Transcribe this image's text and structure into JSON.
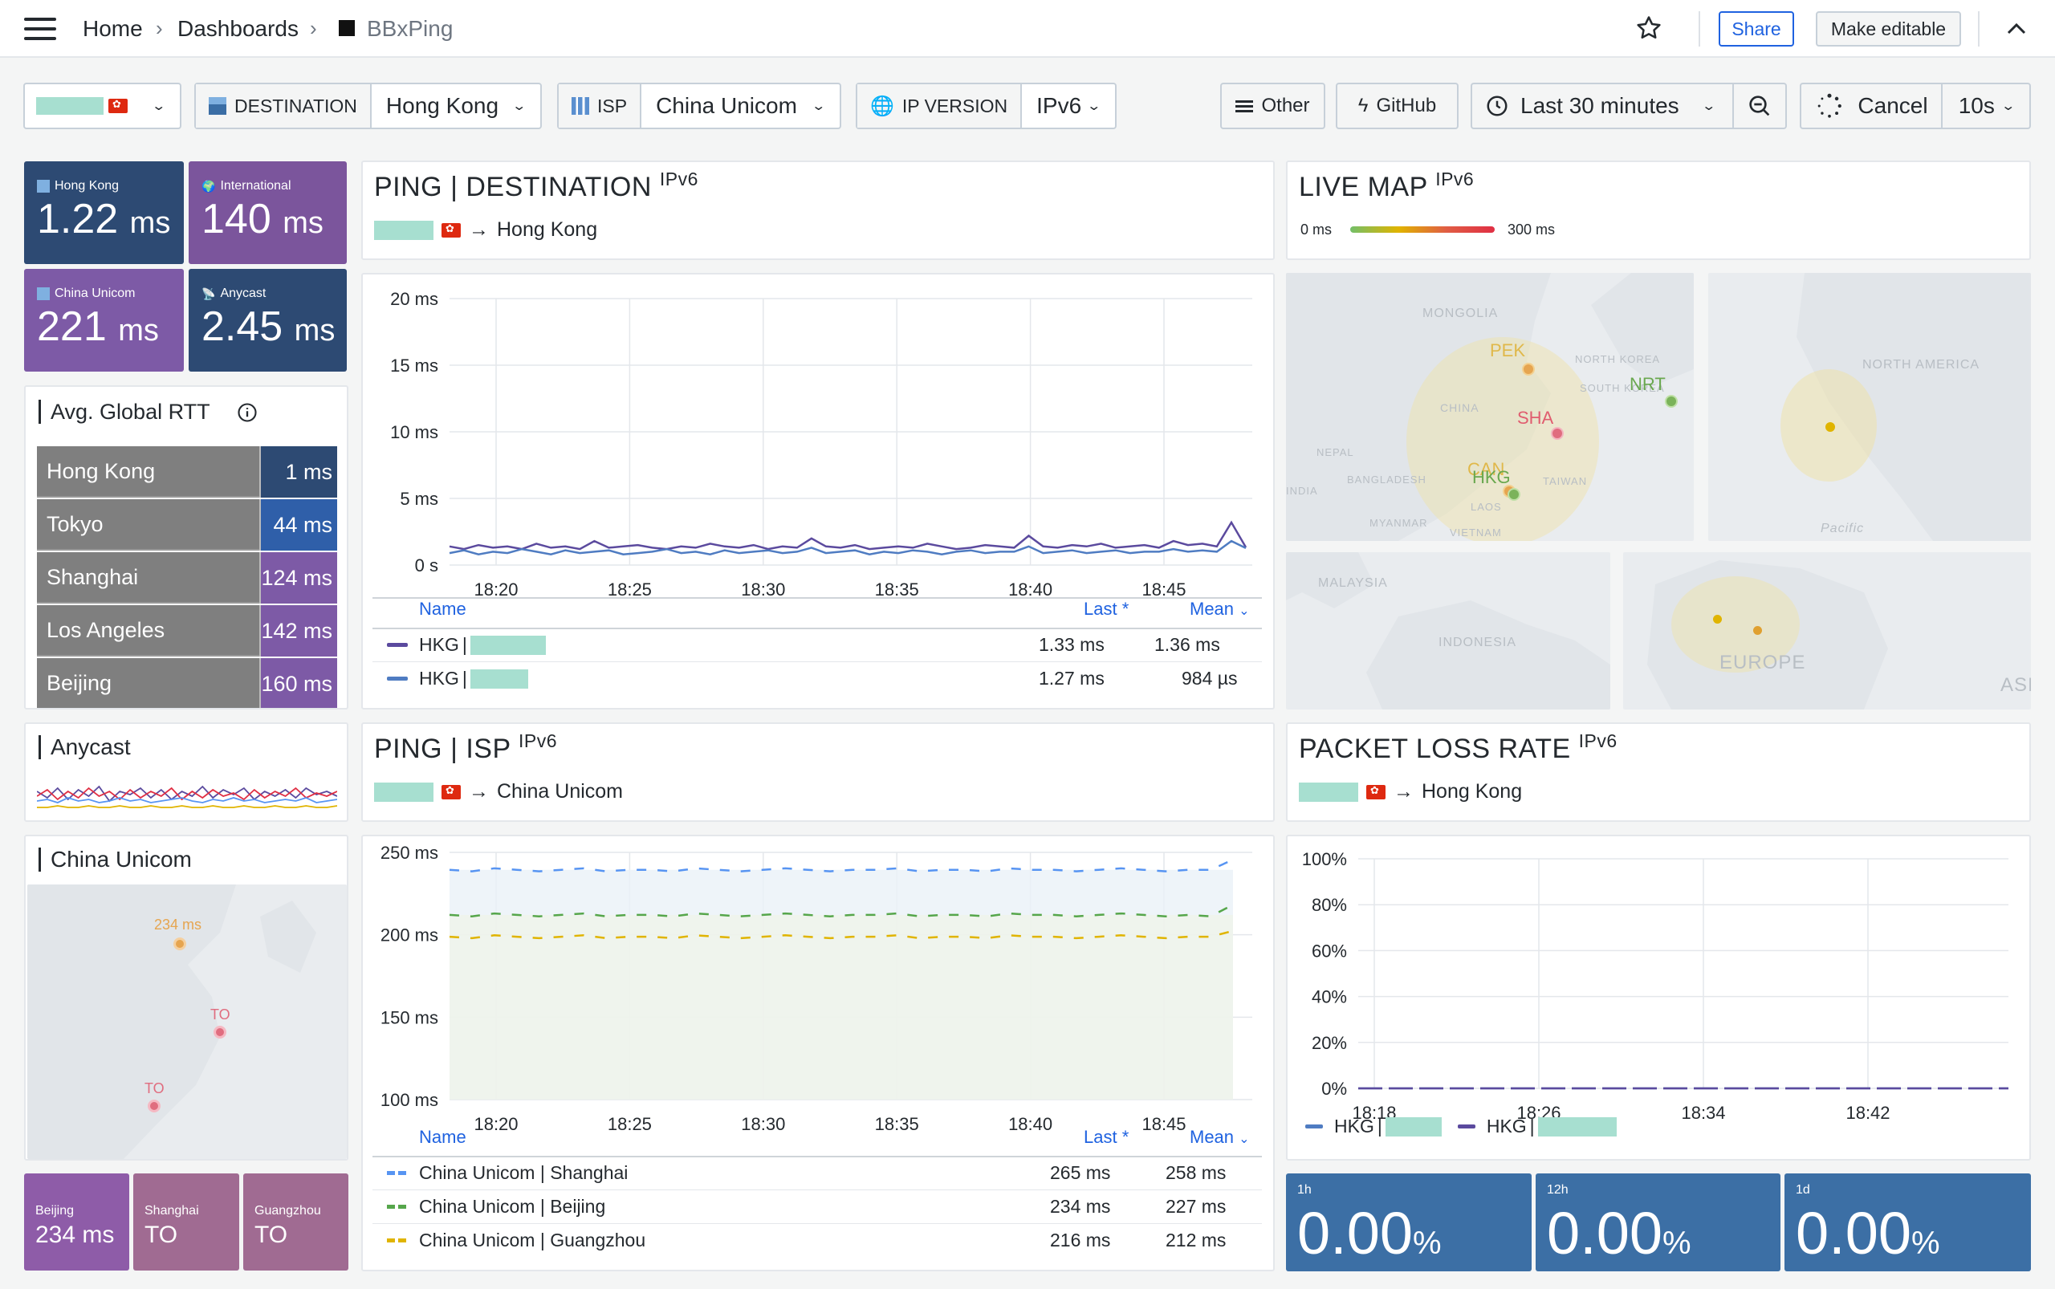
{
  "breadcrumb": {
    "home": "Home",
    "dashboards": "Dashboards",
    "current": "BBxPing"
  },
  "header": {
    "share": "Share",
    "make_editable": "Make editable"
  },
  "variables": {
    "destination": {
      "label": "DESTINATION",
      "value": "Hong Kong"
    },
    "isp": {
      "label": "ISP",
      "value": "China Unicom"
    },
    "ip_version": {
      "label": "IP VERSION",
      "value": "IPv6"
    }
  },
  "toolbar": {
    "other": "Other",
    "github": "GitHub",
    "time_range": "Last 30 minutes",
    "cancel": "Cancel",
    "refresh": "10s"
  },
  "stats": [
    {
      "label": "Hong Kong",
      "value": "1.22",
      "unit": "ms",
      "color": "#2d4a73"
    },
    {
      "label": "International",
      "value": "140",
      "unit": "ms",
      "color": "#7b559c"
    },
    {
      "label": "China Unicom",
      "value": "221",
      "unit": "ms",
      "color": "#7d5aa6"
    },
    {
      "label": "Anycast",
      "value": "2.45",
      "unit": "ms",
      "color": "#2d4a73"
    }
  ],
  "avg_rtt": {
    "title": "Avg. Global RTT",
    "rows": [
      {
        "city": "Hong Kong",
        "value": "1 ms",
        "color": "#2d4a73"
      },
      {
        "city": "Tokyo",
        "value": "44 ms",
        "color": "#2f5fa9"
      },
      {
        "city": "Shanghai",
        "value": "124 ms",
        "color": "#7d5aa6"
      },
      {
        "city": "Los Angeles",
        "value": "142 ms",
        "color": "#7d5aa6"
      },
      {
        "city": "Beijing",
        "value": "160 ms",
        "color": "#7d5aa6"
      }
    ]
  },
  "anycast_panel": {
    "title": "Anycast"
  },
  "unicom_panel": {
    "title": "China Unicom",
    "map_labels": {
      "beijing": "234 ms",
      "shanghai": "TO",
      "guangzhou": "TO"
    },
    "tiles": [
      {
        "label": "Beijing",
        "value": "234 ms",
        "color": "#8e5ca8"
      },
      {
        "label": "Shanghai",
        "value": "TO",
        "color": "#a06b92"
      },
      {
        "label": "Guangzhou",
        "value": "TO",
        "color": "#a06b92"
      }
    ]
  },
  "ping_destination": {
    "title": "PING | DESTINATION",
    "badge": "IPv6",
    "arrow_target": "Hong Kong",
    "legend": {
      "name_header": "Name",
      "last_header": "Last *",
      "mean_header": "Mean",
      "rows": [
        {
          "name": "HKG",
          "last": "1.33 ms",
          "mean": "1.36 ms",
          "color": "#5b4a9e"
        },
        {
          "name": "HKG",
          "last": "1.27 ms",
          "mean": "984 µs",
          "color": "#4f7cc2"
        }
      ]
    }
  },
  "ping_isp": {
    "title": "PING | ISP",
    "badge": "IPv6",
    "arrow_target": "China Unicom",
    "legend": {
      "name_header": "Name",
      "last_header": "Last *",
      "mean_header": "Mean",
      "rows": [
        {
          "name": "China Unicom | Shanghai",
          "last": "265 ms",
          "mean": "258 ms",
          "color": "#5794f2"
        },
        {
          "name": "China Unicom | Beijing",
          "last": "234 ms",
          "mean": "227 ms",
          "color": "#56a64b"
        },
        {
          "name": "China Unicom | Guangzhou",
          "last": "216 ms",
          "mean": "212 ms",
          "color": "#e0b400"
        }
      ]
    }
  },
  "live_map": {
    "title": "LIVE MAP",
    "badge": "IPv6",
    "scale_min": "0 ms",
    "scale_max": "300 ms",
    "labels": {
      "mongolia": "MONGOLIA",
      "north_korea": "NORTH KOREA",
      "south_korea": "SOUTH KOREA",
      "china": "CHINA",
      "nepal": "NEPAL",
      "india": "INDIA",
      "bangladesh": "BANGLADESH",
      "myanmar": "MYANMAR",
      "laos": "LAOS",
      "vietnam": "VIETNAM",
      "taiwan": "TAIWAN",
      "north_america": "NORTH AMERICA",
      "pacific": "Pacific",
      "malaysia": "MALAYSIA",
      "indonesia": "INDONESIA",
      "europe": "EUROPE",
      "asia": "ASI"
    },
    "cities": {
      "pek": "PEK",
      "sha": "SHA",
      "nrt": "NRT",
      "can": "CAN",
      "hkg": "HKG"
    }
  },
  "packet_loss": {
    "title": "PACKET LOSS RATE",
    "badge": "IPv6",
    "arrow_target": "Hong Kong",
    "legend": [
      {
        "name": "HKG",
        "color": "#4f7cc2"
      },
      {
        "name": "HKG",
        "color": "#5b4a9e"
      }
    ],
    "tiles": [
      {
        "label": "1h",
        "value": "0.00",
        "unit": "%"
      },
      {
        "label": "12h",
        "value": "0.00",
        "unit": "%"
      },
      {
        "label": "1d",
        "value": "0.00",
        "unit": "%"
      }
    ]
  },
  "chart_data": [
    {
      "type": "line",
      "title": "PING | DESTINATION",
      "y_unit": "ms",
      "y_ticks": [
        "0 s",
        "5 ms",
        "10 ms",
        "15 ms",
        "20 ms"
      ],
      "ylim": [
        0,
        20
      ],
      "x_ticks": [
        "18:20",
        "18:25",
        "18:30",
        "18:35",
        "18:40",
        "18:45"
      ],
      "series": [
        {
          "name": "HKG",
          "color": "#5b4a9e",
          "values": [
            1.4,
            1.2,
            1.5,
            1.3,
            1.4,
            1.2,
            1.6,
            1.3,
            1.4,
            1.2,
            1.8,
            1.3,
            1.4,
            1.5,
            1.3,
            1.2,
            1.4,
            1.3,
            1.6,
            1.4,
            1.3,
            1.5,
            1.2,
            1.4,
            1.3,
            2.0,
            1.4,
            1.3,
            1.5,
            1.2,
            1.3,
            1.4,
            1.3,
            1.6,
            1.4,
            1.2,
            1.3,
            1.5,
            1.4,
            1.3,
            2.2,
            1.4,
            1.3,
            1.5,
            1.4,
            1.6,
            1.3,
            1.4,
            1.5,
            1.3,
            1.8,
            1.5,
            1.6,
            1.4,
            3.2,
            1.33
          ]
        },
        {
          "name": "HKG",
          "color": "#4f7cc2",
          "values": [
            0.9,
            1.1,
            0.8,
            1.0,
            0.9,
            1.2,
            1.0,
            0.8,
            1.1,
            0.9,
            1.0,
            1.1,
            0.8,
            0.9,
            1.0,
            1.2,
            0.9,
            1.0,
            0.8,
            1.1,
            0.9,
            1.0,
            1.1,
            0.9,
            1.0,
            1.3,
            0.9,
            1.0,
            1.1,
            0.8,
            1.0,
            0.9,
            1.1,
            1.0,
            0.8,
            1.0,
            1.1,
            0.9,
            1.0,
            1.0,
            1.4,
            0.9,
            1.0,
            1.1,
            0.9,
            1.0,
            1.1,
            0.9,
            1.0,
            1.0,
            1.2,
            1.0,
            1.1,
            1.0,
            1.8,
            1.27
          ]
        }
      ]
    },
    {
      "type": "line",
      "title": "PING | ISP",
      "y_unit": "ms",
      "y_ticks": [
        "100 ms",
        "150 ms",
        "200 ms",
        "250 ms"
      ],
      "ylim": [
        100,
        270
      ],
      "x_ticks": [
        "18:20",
        "18:25",
        "18:30",
        "18:35",
        "18:40",
        "18:45"
      ],
      "series": [
        {
          "name": "China Unicom | Shanghai",
          "color": "#5794f2",
          "values": [
            258,
            257,
            259,
            258,
            257,
            258,
            259,
            257,
            258,
            258,
            257,
            259,
            258,
            257,
            258,
            259,
            258,
            257,
            258,
            258,
            259,
            257,
            258,
            258,
            257,
            259,
            258,
            258,
            257,
            258,
            259,
            258,
            257,
            258,
            258,
            265
          ]
        },
        {
          "name": "China Unicom | Beijing",
          "color": "#56a64b",
          "values": [
            227,
            226,
            228,
            227,
            226,
            227,
            228,
            226,
            227,
            227,
            226,
            228,
            227,
            226,
            227,
            228,
            227,
            226,
            227,
            227,
            228,
            226,
            227,
            227,
            226,
            228,
            227,
            227,
            226,
            227,
            228,
            227,
            226,
            227,
            226,
            234
          ]
        },
        {
          "name": "China Unicom | Guangzhou",
          "color": "#e0b400",
          "values": [
            212,
            211,
            213,
            212,
            211,
            212,
            213,
            211,
            212,
            212,
            211,
            213,
            212,
            211,
            212,
            213,
            212,
            211,
            212,
            212,
            213,
            211,
            212,
            212,
            211,
            213,
            212,
            212,
            211,
            212,
            213,
            212,
            211,
            212,
            212,
            216
          ]
        }
      ]
    },
    {
      "type": "line",
      "title": "PACKET LOSS RATE",
      "y_ticks": [
        "0%",
        "20%",
        "40%",
        "60%",
        "80%",
        "100%"
      ],
      "ylim": [
        0,
        100
      ],
      "x_ticks": [
        "18:18",
        "18:26",
        "18:34",
        "18:42"
      ],
      "series": [
        {
          "name": "HKG",
          "color": "#4f7cc2",
          "values": [
            0,
            0,
            0,
            0,
            0,
            0,
            0,
            0,
            0,
            0,
            0,
            0,
            0,
            0,
            0,
            0,
            0,
            0,
            0,
            0,
            0,
            0,
            0,
            0,
            0,
            0,
            0,
            0,
            0,
            0,
            0,
            0
          ]
        },
        {
          "name": "HKG",
          "color": "#5b4a9e",
          "values": [
            0,
            0,
            0,
            0,
            0,
            0,
            0,
            0,
            0,
            0,
            0,
            0,
            0,
            0,
            0,
            0,
            0,
            0,
            0,
            0,
            0,
            0,
            0,
            0,
            0,
            0,
            0,
            0,
            0,
            0,
            0,
            0
          ]
        }
      ]
    },
    {
      "type": "line",
      "title": "Anycast",
      "series": [
        {
          "name": "",
          "color": "#5b4a9e",
          "values": [
            2.6,
            2.2,
            2.8,
            2.1,
            2.7,
            2.3,
            2.9,
            2.0,
            2.6,
            2.4,
            2.8,
            2.2,
            2.7,
            2.1,
            2.6,
            2.3,
            2.9,
            2.2,
            2.7,
            2.4,
            2.8,
            2.1,
            2.6,
            2.3,
            2.7,
            2.2,
            2.8,
            2.4,
            2.6,
            2.3
          ]
        },
        {
          "name": "",
          "color": "#e02f44",
          "values": [
            2.3,
            2.7,
            2.1,
            2.6,
            2.2,
            2.8,
            2.3,
            2.6,
            2.1,
            2.7,
            2.2,
            2.6,
            2.3,
            2.8,
            2.1,
            2.6,
            2.2,
            2.7,
            2.3,
            2.5,
            2.1,
            2.7,
            2.2,
            2.6,
            2.3,
            2.8,
            2.2,
            2.5,
            2.3,
            2.6
          ]
        },
        {
          "name": "",
          "color": "#5794f2",
          "values": [
            2.0,
            2.1,
            1.9,
            2.2,
            2.0,
            2.1,
            1.9,
            2.0,
            2.2,
            2.0,
            2.1,
            1.9,
            2.0,
            2.1,
            2.2,
            2.0,
            1.9,
            2.1,
            2.0,
            2.2,
            2.0,
            2.1,
            1.9,
            2.0,
            2.1,
            2.0,
            2.2,
            1.9,
            2.0,
            2.1
          ]
        },
        {
          "name": "",
          "color": "#e0b400",
          "values": [
            1.6,
            1.6,
            1.7,
            1.6,
            1.6,
            1.7,
            1.6,
            1.6,
            1.7,
            1.6,
            1.6,
            1.7,
            1.6,
            1.6,
            1.7,
            1.6,
            1.6,
            1.7,
            1.6,
            1.6,
            1.7,
            1.6,
            1.6,
            1.7,
            1.6,
            1.6,
            1.7,
            1.6,
            1.6,
            1.7
          ]
        }
      ]
    }
  ]
}
